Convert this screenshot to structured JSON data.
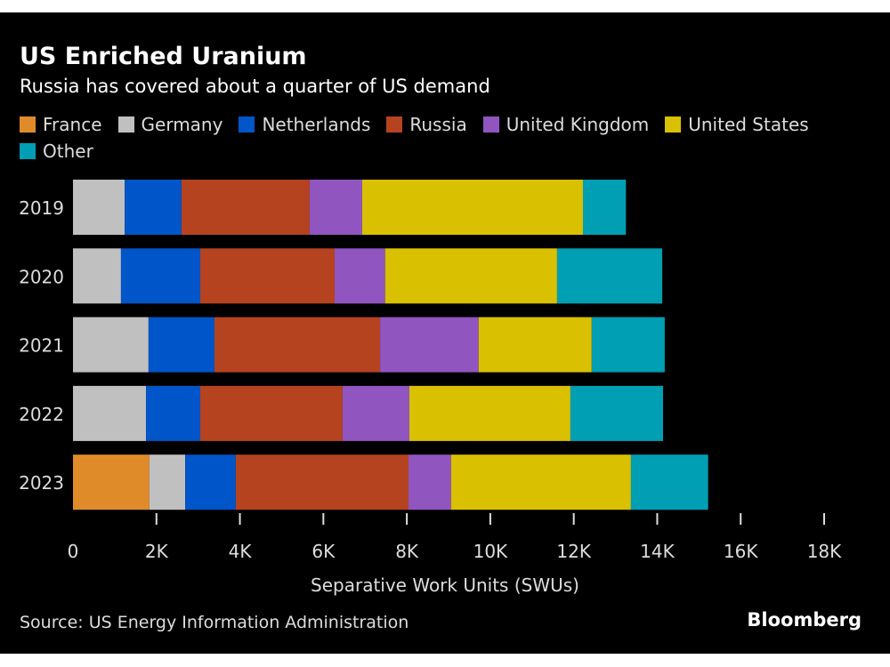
{
  "chart_data": {
    "type": "bar",
    "orientation": "horizontal",
    "stacked": true,
    "title": "US Enriched Uranium",
    "subtitle": "Russia has covered about a quarter of US demand",
    "xlabel": "Separative Work Units (SWUs)",
    "ylabel": "",
    "xlim": [
      0,
      18000
    ],
    "xticks": [
      0,
      2000,
      4000,
      6000,
      8000,
      10000,
      12000,
      14000,
      16000,
      18000
    ],
    "xtick_labels": [
      "0",
      "2K",
      "4K",
      "6K",
      "8K",
      "10K",
      "12K",
      "14K",
      "16K",
      "18K"
    ],
    "categories": [
      "2019",
      "2020",
      "2021",
      "2022",
      "2023"
    ],
    "legend_position": "top",
    "series": [
      {
        "name": "France",
        "color": "#e08b2a",
        "values": [
          0,
          0,
          0,
          0,
          1830
        ]
      },
      {
        "name": "Germany",
        "color": "#c0c0c0",
        "values": [
          1240,
          1150,
          1810,
          1750,
          860
        ]
      },
      {
        "name": "Netherlands",
        "color": "#0055c8",
        "values": [
          1360,
          1900,
          1580,
          1300,
          1210
        ]
      },
      {
        "name": "Russia",
        "color": "#b5431f",
        "values": [
          3070,
          3220,
          3970,
          3410,
          4140
        ]
      },
      {
        "name": "United Kingdom",
        "color": "#9155c0",
        "values": [
          1260,
          1210,
          2360,
          1600,
          1020
        ]
      },
      {
        "name": "United States",
        "color": "#d9c000",
        "values": [
          5290,
          4120,
          2710,
          3860,
          4310
        ]
      },
      {
        "name": "Other",
        "color": "#009fb4",
        "values": [
          1030,
          2520,
          1750,
          2220,
          1850
        ]
      }
    ]
  },
  "footer": {
    "source": "Source: US Energy Information Administration",
    "brand": "Bloomberg"
  }
}
